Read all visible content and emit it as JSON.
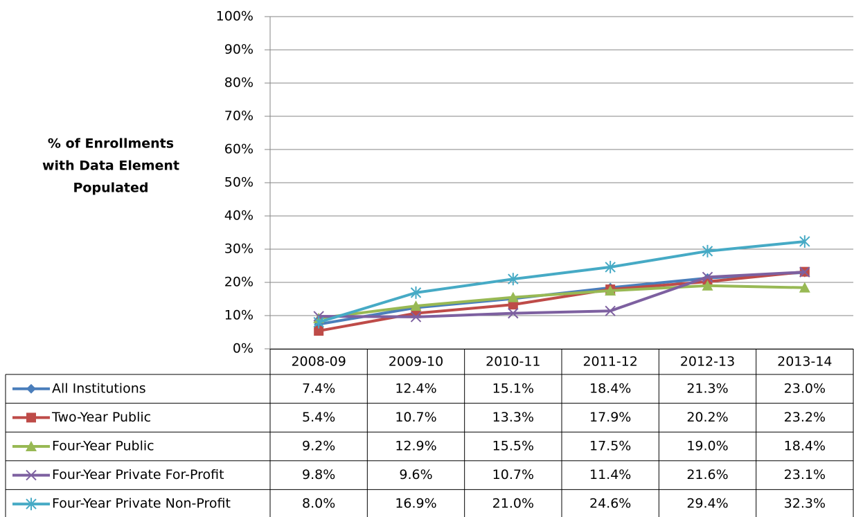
{
  "chart_data": {
    "type": "line",
    "y_label": [
      "% of Enrollments",
      "with Data Element",
      "Populated"
    ],
    "categories": [
      "2008-09",
      "2009-10",
      "2010-11",
      "2011-12",
      "2012-13",
      "2013-14"
    ],
    "ylim": [
      0,
      100
    ],
    "yticks": [
      {
        "value": 0,
        "label": "0%"
      },
      {
        "value": 10,
        "label": "10%"
      },
      {
        "value": 20,
        "label": "20%"
      },
      {
        "value": 30,
        "label": "30%"
      },
      {
        "value": 40,
        "label": "40%"
      },
      {
        "value": 50,
        "label": "50%"
      },
      {
        "value": 60,
        "label": "60%"
      },
      {
        "value": 70,
        "label": "70%"
      },
      {
        "value": 80,
        "label": "80%"
      },
      {
        "value": 90,
        "label": "90%"
      },
      {
        "value": 100,
        "label": "100%"
      }
    ],
    "grid": true,
    "series": [
      {
        "name": "All Institutions",
        "color": "#4a7ebb",
        "marker": "diamond",
        "values": [
          7.4,
          12.4,
          15.1,
          18.4,
          21.3,
          23.0
        ],
        "value_labels": [
          "7.4%",
          "12.4%",
          "15.1%",
          "18.4%",
          "21.3%",
          "23.0%"
        ]
      },
      {
        "name": "Two-Year Public",
        "color": "#be4b48",
        "marker": "square",
        "values": [
          5.4,
          10.7,
          13.3,
          17.9,
          20.2,
          23.2
        ],
        "value_labels": [
          "5.4%",
          "10.7%",
          "13.3%",
          "17.9%",
          "20.2%",
          "23.2%"
        ]
      },
      {
        "name": "Four-Year Public",
        "color": "#98b954",
        "marker": "triangle",
        "values": [
          9.2,
          12.9,
          15.5,
          17.5,
          19.0,
          18.4
        ],
        "value_labels": [
          "9.2%",
          "12.9%",
          "15.5%",
          "17.5%",
          "19.0%",
          "18.4%"
        ]
      },
      {
        "name": "Four-Year Private For-Profit",
        "color": "#7d60a0",
        "marker": "x",
        "values": [
          9.8,
          9.6,
          10.7,
          11.4,
          21.6,
          23.1
        ],
        "value_labels": [
          "9.8%",
          "9.6%",
          "10.7%",
          "11.4%",
          "21.6%",
          "23.1%"
        ]
      },
      {
        "name": "Four-Year Private Non-Profit",
        "color": "#46aac5",
        "marker": "star",
        "values": [
          8.0,
          16.9,
          21.0,
          24.6,
          29.4,
          32.3
        ],
        "value_labels": [
          "8.0%",
          "16.9%",
          "21.0%",
          "24.6%",
          "29.4%",
          "32.3%"
        ]
      }
    ]
  }
}
